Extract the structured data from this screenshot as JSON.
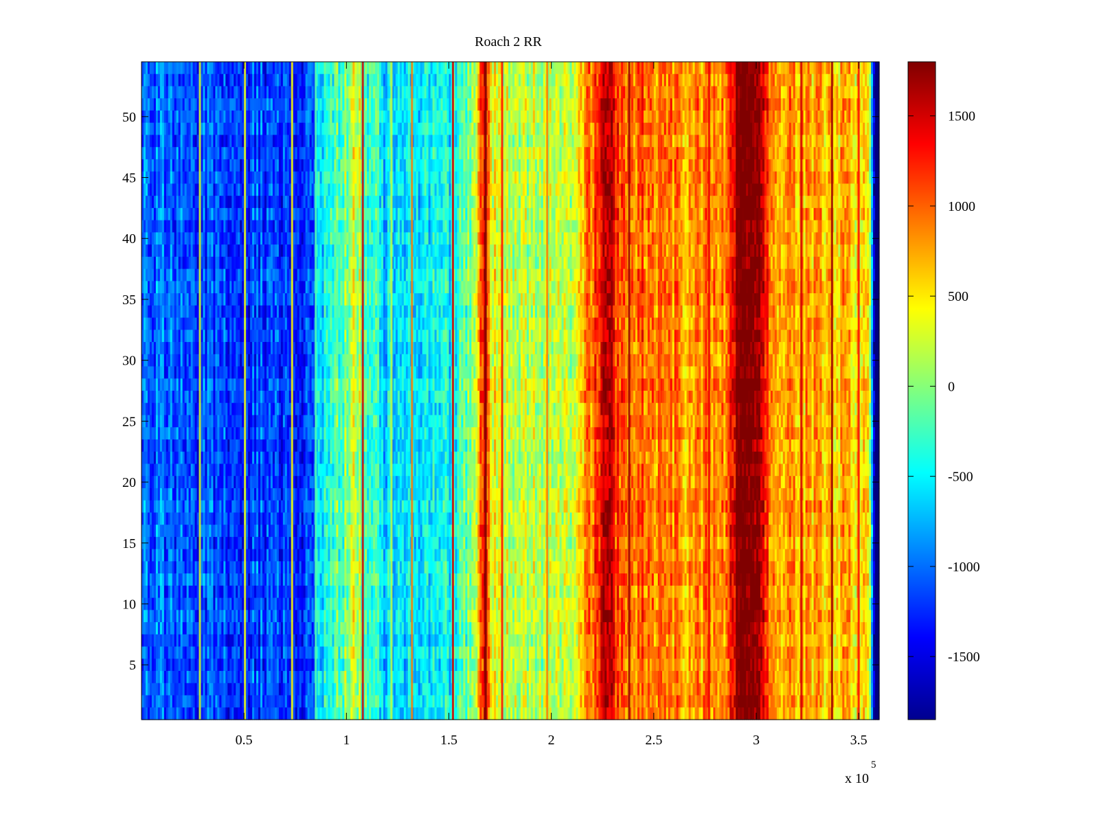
{
  "chart_data": {
    "type": "heatmap",
    "title": "Roach 2 RR",
    "xlabel": "",
    "ylabel": "",
    "x_multiplier_label": "x 10",
    "x_multiplier_exponent": "5",
    "xlim": [
      0,
      3.6
    ],
    "ylim": [
      0.5,
      54.5
    ],
    "x_ticks": [
      0.5,
      1,
      1.5,
      2,
      2.5,
      3,
      3.5
    ],
    "x_tick_labels": [
      "0.5",
      "1",
      "1.5",
      "2",
      "2.5",
      "3",
      "3.5"
    ],
    "y_ticks": [
      5,
      10,
      15,
      20,
      25,
      30,
      35,
      40,
      45,
      50
    ],
    "y_tick_labels": [
      "5",
      "10",
      "15",
      "20",
      "25",
      "30",
      "35",
      "40",
      "45",
      "50"
    ],
    "rows": 54,
    "colormap": "jet",
    "colorbar": {
      "range": [
        -1850,
        1800
      ],
      "ticks": [
        1500,
        1000,
        500,
        0,
        -500,
        -1000,
        -1500
      ],
      "tick_labels": [
        "1500",
        "1000",
        "500",
        "0",
        "-500",
        "-1000",
        "-1500"
      ]
    },
    "column_profile_x": [
      0,
      0.3,
      0.5,
      0.8,
      0.84,
      0.86,
      0.95,
      1.05,
      1.1,
      1.2,
      1.5,
      1.62,
      1.67,
      1.72,
      1.8,
      2.1,
      2.23,
      2.26,
      2.35,
      2.5,
      2.7,
      2.85,
      2.9,
      3.0,
      3.05,
      3.15,
      3.3,
      3.5,
      3.55,
      3.575,
      3.6
    ],
    "column_profile_value": [
      -1050,
      -1150,
      -1200,
      -1150,
      -1050,
      -550,
      -250,
      300,
      -300,
      -550,
      -500,
      50,
      1400,
      350,
      200,
      200,
      1300,
      1700,
      1000,
      950,
      800,
      900,
      1700,
      1800,
      1100,
      800,
      700,
      600,
      400,
      -1850,
      -1850
    ],
    "streaks": [
      {
        "x": 0.285,
        "value": 300
      },
      {
        "x": 0.505,
        "value": 400
      },
      {
        "x": 0.735,
        "value": 500
      },
      {
        "x": 0.85,
        "value": -200
      },
      {
        "x": 1.08,
        "value": 1500
      },
      {
        "x": 1.22,
        "value": 200
      },
      {
        "x": 1.32,
        "value": 900
      },
      {
        "x": 1.52,
        "value": 1500
      },
      {
        "x": 1.68,
        "value": 1800
      },
      {
        "x": 1.76,
        "value": 1300
      },
      {
        "x": 1.98,
        "value": 900
      },
      {
        "x": 2.38,
        "value": 1700
      },
      {
        "x": 2.53,
        "value": 1100
      },
      {
        "x": 2.77,
        "value": 1400
      },
      {
        "x": 3.22,
        "value": 1500
      },
      {
        "x": 3.37,
        "value": 1700
      },
      {
        "x": 3.5,
        "value": 1300
      }
    ]
  }
}
